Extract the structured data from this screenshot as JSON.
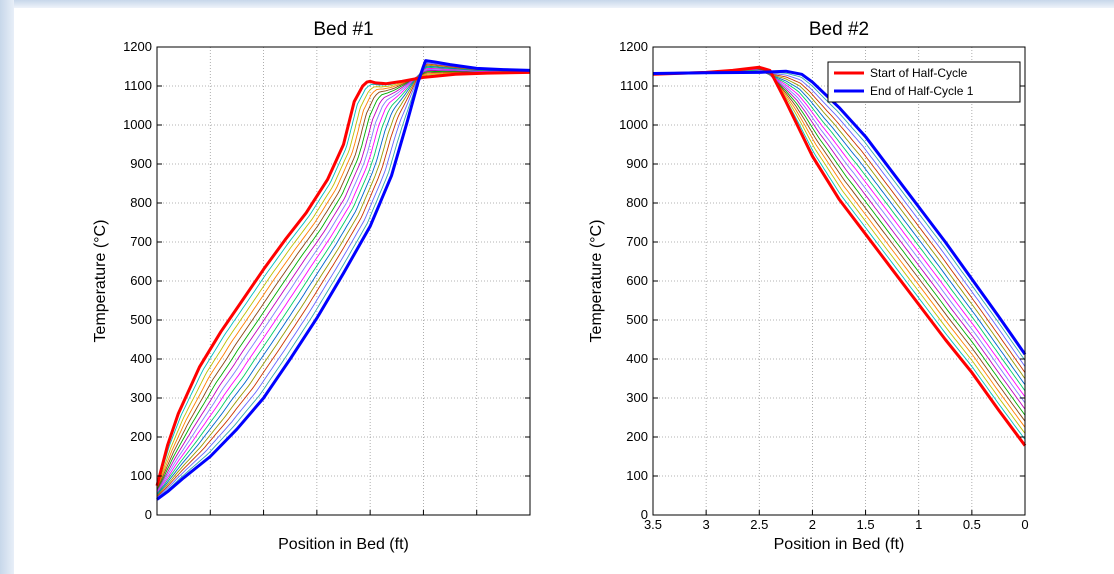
{
  "colors": {
    "start": "#ff0000",
    "end": "#0000ff",
    "intermediate": [
      "#00bfbf",
      "#bfbf00",
      "#ff7f00",
      "#8b4513",
      "#00aa00",
      "#bf00bf",
      "#7f7fff",
      "#ff00ff",
      "#00cc66",
      "#0066cc",
      "#999900",
      "#cc3300",
      "#6666ff",
      "#33aaaa"
    ]
  },
  "chart_data": [
    {
      "type": "line",
      "title": "Bed #1",
      "xlabel": "Position in Bed (ft)",
      "ylabel": "Temperature (°C)",
      "xlim": [
        0,
        3.5
      ],
      "ylim": [
        0,
        1200
      ],
      "yticks": [
        0,
        100,
        200,
        300,
        400,
        500,
        600,
        700,
        800,
        900,
        1000,
        1100,
        1200
      ],
      "grid": true,
      "legend": false,
      "intermediate_curves": 14,
      "series": [
        {
          "color_key": "start",
          "x": [
            0,
            0.1,
            0.2,
            0.4,
            0.6,
            0.8,
            1.0,
            1.2,
            1.4,
            1.6,
            1.75,
            1.85,
            1.93,
            1.97,
            2.0,
            2.05,
            2.15,
            2.3,
            2.5,
            2.8,
            3.1,
            3.5
          ],
          "y": [
            75,
            180,
            260,
            380,
            470,
            550,
            630,
            705,
            775,
            860,
            950,
            1060,
            1100,
            1110,
            1112,
            1108,
            1106,
            1112,
            1122,
            1130,
            1133,
            1135
          ]
        },
        {
          "color_key": "end",
          "x": [
            0,
            0.1,
            0.25,
            0.5,
            0.75,
            1.0,
            1.25,
            1.5,
            1.75,
            2.0,
            2.2,
            2.35,
            2.45,
            2.5,
            2.52,
            2.6,
            2.75,
            3.0,
            3.25,
            3.5
          ],
          "y": [
            40,
            60,
            95,
            150,
            220,
            300,
            400,
            505,
            620,
            740,
            870,
            1010,
            1110,
            1150,
            1165,
            1162,
            1155,
            1145,
            1142,
            1140
          ]
        }
      ]
    },
    {
      "type": "line",
      "title": "Bed #2",
      "xlabel": "Position in Bed (ft)",
      "ylabel": "Temperature (°C)",
      "xlim": [
        3.5,
        0
      ],
      "ylim": [
        0,
        1200
      ],
      "yticks": [
        0,
        100,
        200,
        300,
        400,
        500,
        600,
        700,
        800,
        900,
        1000,
        1100,
        1200
      ],
      "xticks": [
        3.5,
        3,
        2.5,
        2,
        1.5,
        1,
        0.5,
        0
      ],
      "xtick_labels": [
        "3.5",
        "3",
        "2.5",
        "2",
        "1.5",
        "1",
        "0.5",
        "0"
      ],
      "grid": true,
      "legend": "top-right",
      "intermediate_curves": 14,
      "series": [
        {
          "name": "Start of Half-Cycle",
          "color_key": "start",
          "x": [
            3.5,
            3.0,
            2.75,
            2.5,
            2.4,
            2.25,
            2.0,
            1.75,
            1.5,
            1.25,
            1.0,
            0.75,
            0.5,
            0.25,
            0
          ],
          "y": [
            1130,
            1135,
            1140,
            1148,
            1140,
            1060,
            920,
            810,
            720,
            630,
            540,
            450,
            365,
            270,
            178
          ]
        },
        {
          "name": "End of Half-Cycle 1",
          "color_key": "end",
          "x": [
            3.5,
            3.0,
            2.5,
            2.25,
            2.1,
            2.0,
            1.75,
            1.5,
            1.25,
            1.0,
            0.75,
            0.5,
            0.25,
            0
          ],
          "y": [
            1132,
            1134,
            1135,
            1138,
            1130,
            1110,
            1045,
            970,
            880,
            790,
            700,
            605,
            510,
            412
          ]
        }
      ]
    }
  ]
}
